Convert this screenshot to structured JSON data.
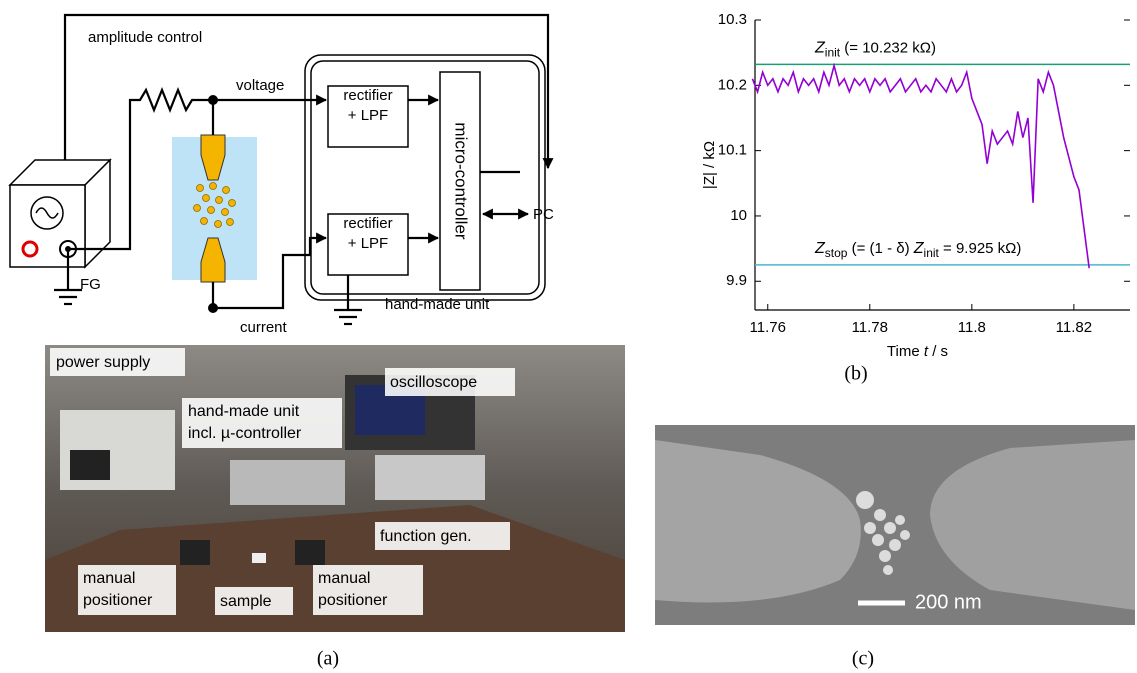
{
  "diagram": {
    "amplitude_control": "amplitude control",
    "voltage": "voltage",
    "current": "current",
    "rectifier_1": [
      "rectifier",
      "+ LPF"
    ],
    "rectifier_2": [
      "rectifier",
      "+ LPF"
    ],
    "microcontroller": "micro-controller",
    "pc": "PC",
    "fg": "FG",
    "unit": "hand-made unit"
  },
  "photo": {
    "power_supply": "power supply",
    "hand_made_unit": [
      "hand-made unit",
      "incl. µ-controller"
    ],
    "oscilloscope": "oscilloscope",
    "function_gen": "function gen.",
    "positioner_left": [
      "manual",
      "positioner"
    ],
    "sample": "sample",
    "positioner_right": [
      "manual",
      "positioner"
    ]
  },
  "sem": {
    "scale_bar": "200 nm"
  },
  "captions": {
    "a": "(a)",
    "b": "(b)",
    "c": "(c)"
  },
  "chart_data": {
    "type": "line",
    "y_label": "|Z| / kΩ",
    "x_label": [
      "Time ",
      "t",
      " / s"
    ],
    "color": "#9400d3",
    "x": [
      11.757,
      11.758,
      11.759,
      11.76,
      11.761,
      11.762,
      11.763,
      11.764,
      11.765,
      11.766,
      11.767,
      11.768,
      11.769,
      11.77,
      11.771,
      11.772,
      11.773,
      11.774,
      11.775,
      11.776,
      11.777,
      11.778,
      11.779,
      11.78,
      11.781,
      11.782,
      11.783,
      11.784,
      11.785,
      11.786,
      11.787,
      11.788,
      11.789,
      11.79,
      11.791,
      11.792,
      11.793,
      11.794,
      11.795,
      11.796,
      11.797,
      11.798,
      11.799,
      11.8,
      11.801,
      11.802,
      11.803,
      11.804,
      11.805,
      11.806,
      11.807,
      11.808,
      11.809,
      11.81,
      11.811,
      11.812,
      11.813,
      11.814,
      11.815,
      11.816,
      11.817,
      11.818,
      11.819,
      11.82,
      11.821,
      11.822,
      11.823
    ],
    "values": [
      10.21,
      10.19,
      10.22,
      10.2,
      10.21,
      10.19,
      10.21,
      10.2,
      10.22,
      10.19,
      10.21,
      10.2,
      10.21,
      10.19,
      10.22,
      10.2,
      10.23,
      10.2,
      10.21,
      10.19,
      10.21,
      10.2,
      10.21,
      10.19,
      10.21,
      10.2,
      10.21,
      10.19,
      10.2,
      10.21,
      10.19,
      10.2,
      10.21,
      10.19,
      10.2,
      10.19,
      10.21,
      10.2,
      10.19,
      10.21,
      10.19,
      10.2,
      10.22,
      10.18,
      10.16,
      10.14,
      10.08,
      10.13,
      10.11,
      10.12,
      10.13,
      10.11,
      10.16,
      10.12,
      10.15,
      10.02,
      10.21,
      10.19,
      10.22,
      10.2,
      10.16,
      10.12,
      10.09,
      10.06,
      10.04,
      9.98,
      9.92
    ],
    "xlim": [
      11.7575,
      11.831
    ],
    "ylim": [
      9.856,
      10.3
    ],
    "xticks": [
      11.76,
      11.78,
      11.8,
      11.82
    ],
    "yticks": [
      9.9,
      10,
      10.1,
      10.2,
      10.3
    ],
    "reference_lines": [
      {
        "value": 10.232,
        "color": "#1a9e77",
        "label": [
          "Z",
          "init",
          " (= 10.232 kΩ)"
        ]
      },
      {
        "value": 9.925,
        "color": "#4ab8d0",
        "label": [
          "Z",
          "stop",
          " (= (1 - δ) ",
          "Z",
          "init",
          " = 9.925 kΩ)"
        ]
      }
    ]
  }
}
